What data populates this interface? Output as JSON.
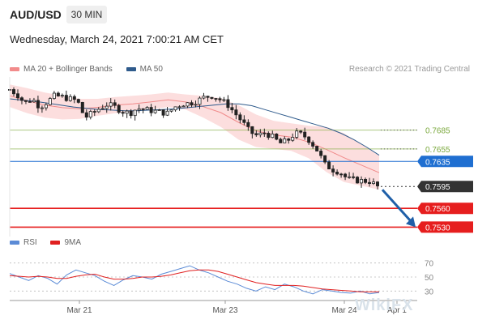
{
  "header": {
    "symbol": "AUD/USD",
    "timeframe": "30 MIN",
    "datetime": "Wednesday, March 24, 2021 7:00:21 AM CET"
  },
  "legend": {
    "items": [
      {
        "label": "MA 20 + Bollinger Bands",
        "color": "#f28b8b"
      },
      {
        "label": "MA 50",
        "color": "#2f5b8c"
      }
    ],
    "credit": "Research © 2021 Trading Central"
  },
  "rsi_legend": {
    "items": [
      {
        "label": "RSI",
        "color": "#5b8bd6"
      },
      {
        "label": "9MA",
        "color": "#e02020"
      }
    ]
  },
  "watermark": "WikiFX",
  "chart_data": [
    {
      "type": "candlestick",
      "x_ticks": [
        "Mar 21",
        "Mar 23",
        "Mar 24",
        "Apr 1"
      ],
      "levels": [
        {
          "value": "0.7685",
          "kind": "resistance",
          "color": "#8ab34d"
        },
        {
          "value": "0.7655",
          "kind": "resistance",
          "color": "#8ab34d"
        },
        {
          "value": "0.7635",
          "kind": "pivot",
          "color": "#1f6fd1"
        },
        {
          "value": "0.7595",
          "kind": "last price",
          "color": "#333333"
        },
        {
          "value": "0.7560",
          "kind": "support",
          "color": "#e61e1e"
        },
        {
          "value": "0.7530",
          "kind": "support",
          "color": "#e61e1e"
        }
      ],
      "ylim": [
        0.7515,
        0.777
      ],
      "price_path": [
        0.775,
        0.7742,
        0.7728,
        0.7735,
        0.7722,
        0.773,
        0.774,
        0.7738,
        0.7735,
        0.7732,
        0.7705,
        0.7712,
        0.772,
        0.7726,
        0.7722,
        0.7715,
        0.7712,
        0.772,
        0.7718,
        0.7716,
        0.7714,
        0.7712,
        0.7722,
        0.7727,
        0.7728,
        0.7732,
        0.7738,
        0.774,
        0.7734,
        0.7726,
        0.7712,
        0.7698,
        0.7682,
        0.7676,
        0.7681,
        0.7674,
        0.7664,
        0.7668,
        0.768,
        0.7678,
        0.7668,
        0.7652,
        0.763,
        0.7622,
        0.7618,
        0.7607,
        0.7605,
        0.7604,
        0.7603,
        0.7595
      ],
      "ma50_path": [
        0.7735,
        0.7733,
        0.7731,
        0.7728,
        0.7725,
        0.7722,
        0.772,
        0.7718,
        0.7717,
        0.7716,
        0.7716,
        0.7717,
        0.7718,
        0.7719,
        0.7721,
        0.7723,
        0.7725,
        0.7727,
        0.7727,
        0.7724,
        0.7718,
        0.7712,
        0.7706,
        0.77,
        0.7694,
        0.7688,
        0.768,
        0.767,
        0.7658,
        0.7645
      ],
      "bb_upper": [
        0.7758,
        0.7752,
        0.7745,
        0.774,
        0.7735,
        0.7735,
        0.7738,
        0.774,
        0.7742,
        0.7745,
        0.7742,
        0.774,
        0.7736,
        0.7725,
        0.771,
        0.77,
        0.7696,
        0.7692,
        0.769,
        0.768,
        0.7662,
        0.7644
      ],
      "bb_lower": [
        0.7722,
        0.7712,
        0.7705,
        0.7702,
        0.7703,
        0.7708,
        0.7712,
        0.7714,
        0.7718,
        0.7722,
        0.7718,
        0.7705,
        0.769,
        0.767,
        0.7658,
        0.7655,
        0.7652,
        0.764,
        0.7618,
        0.7602,
        0.7596,
        0.759
      ],
      "forecast": {
        "from": 0.7595,
        "to": 0.753
      }
    },
    {
      "type": "line",
      "name": "RSI",
      "y_ticks": [
        "70",
        "50",
        "30"
      ],
      "ylim": [
        20,
        80
      ],
      "rsi": [
        55,
        50,
        45,
        52,
        48,
        40,
        53,
        60,
        56,
        52,
        44,
        38,
        46,
        52,
        50,
        47,
        54,
        58,
        62,
        66,
        60,
        56,
        50,
        44,
        40,
        34,
        30,
        36,
        32,
        40,
        36,
        30,
        26,
        32,
        30,
        28,
        27,
        30,
        26,
        28
      ],
      "ma9": [
        52,
        51,
        50,
        51,
        50,
        48,
        48,
        51,
        53,
        54,
        50,
        47,
        47,
        48,
        50,
        50,
        51,
        53,
        56,
        59,
        60,
        60,
        58,
        54,
        50,
        46,
        42,
        40,
        38,
        38,
        38,
        37,
        35,
        33,
        32,
        31,
        30,
        29,
        29,
        29
      ]
    }
  ]
}
